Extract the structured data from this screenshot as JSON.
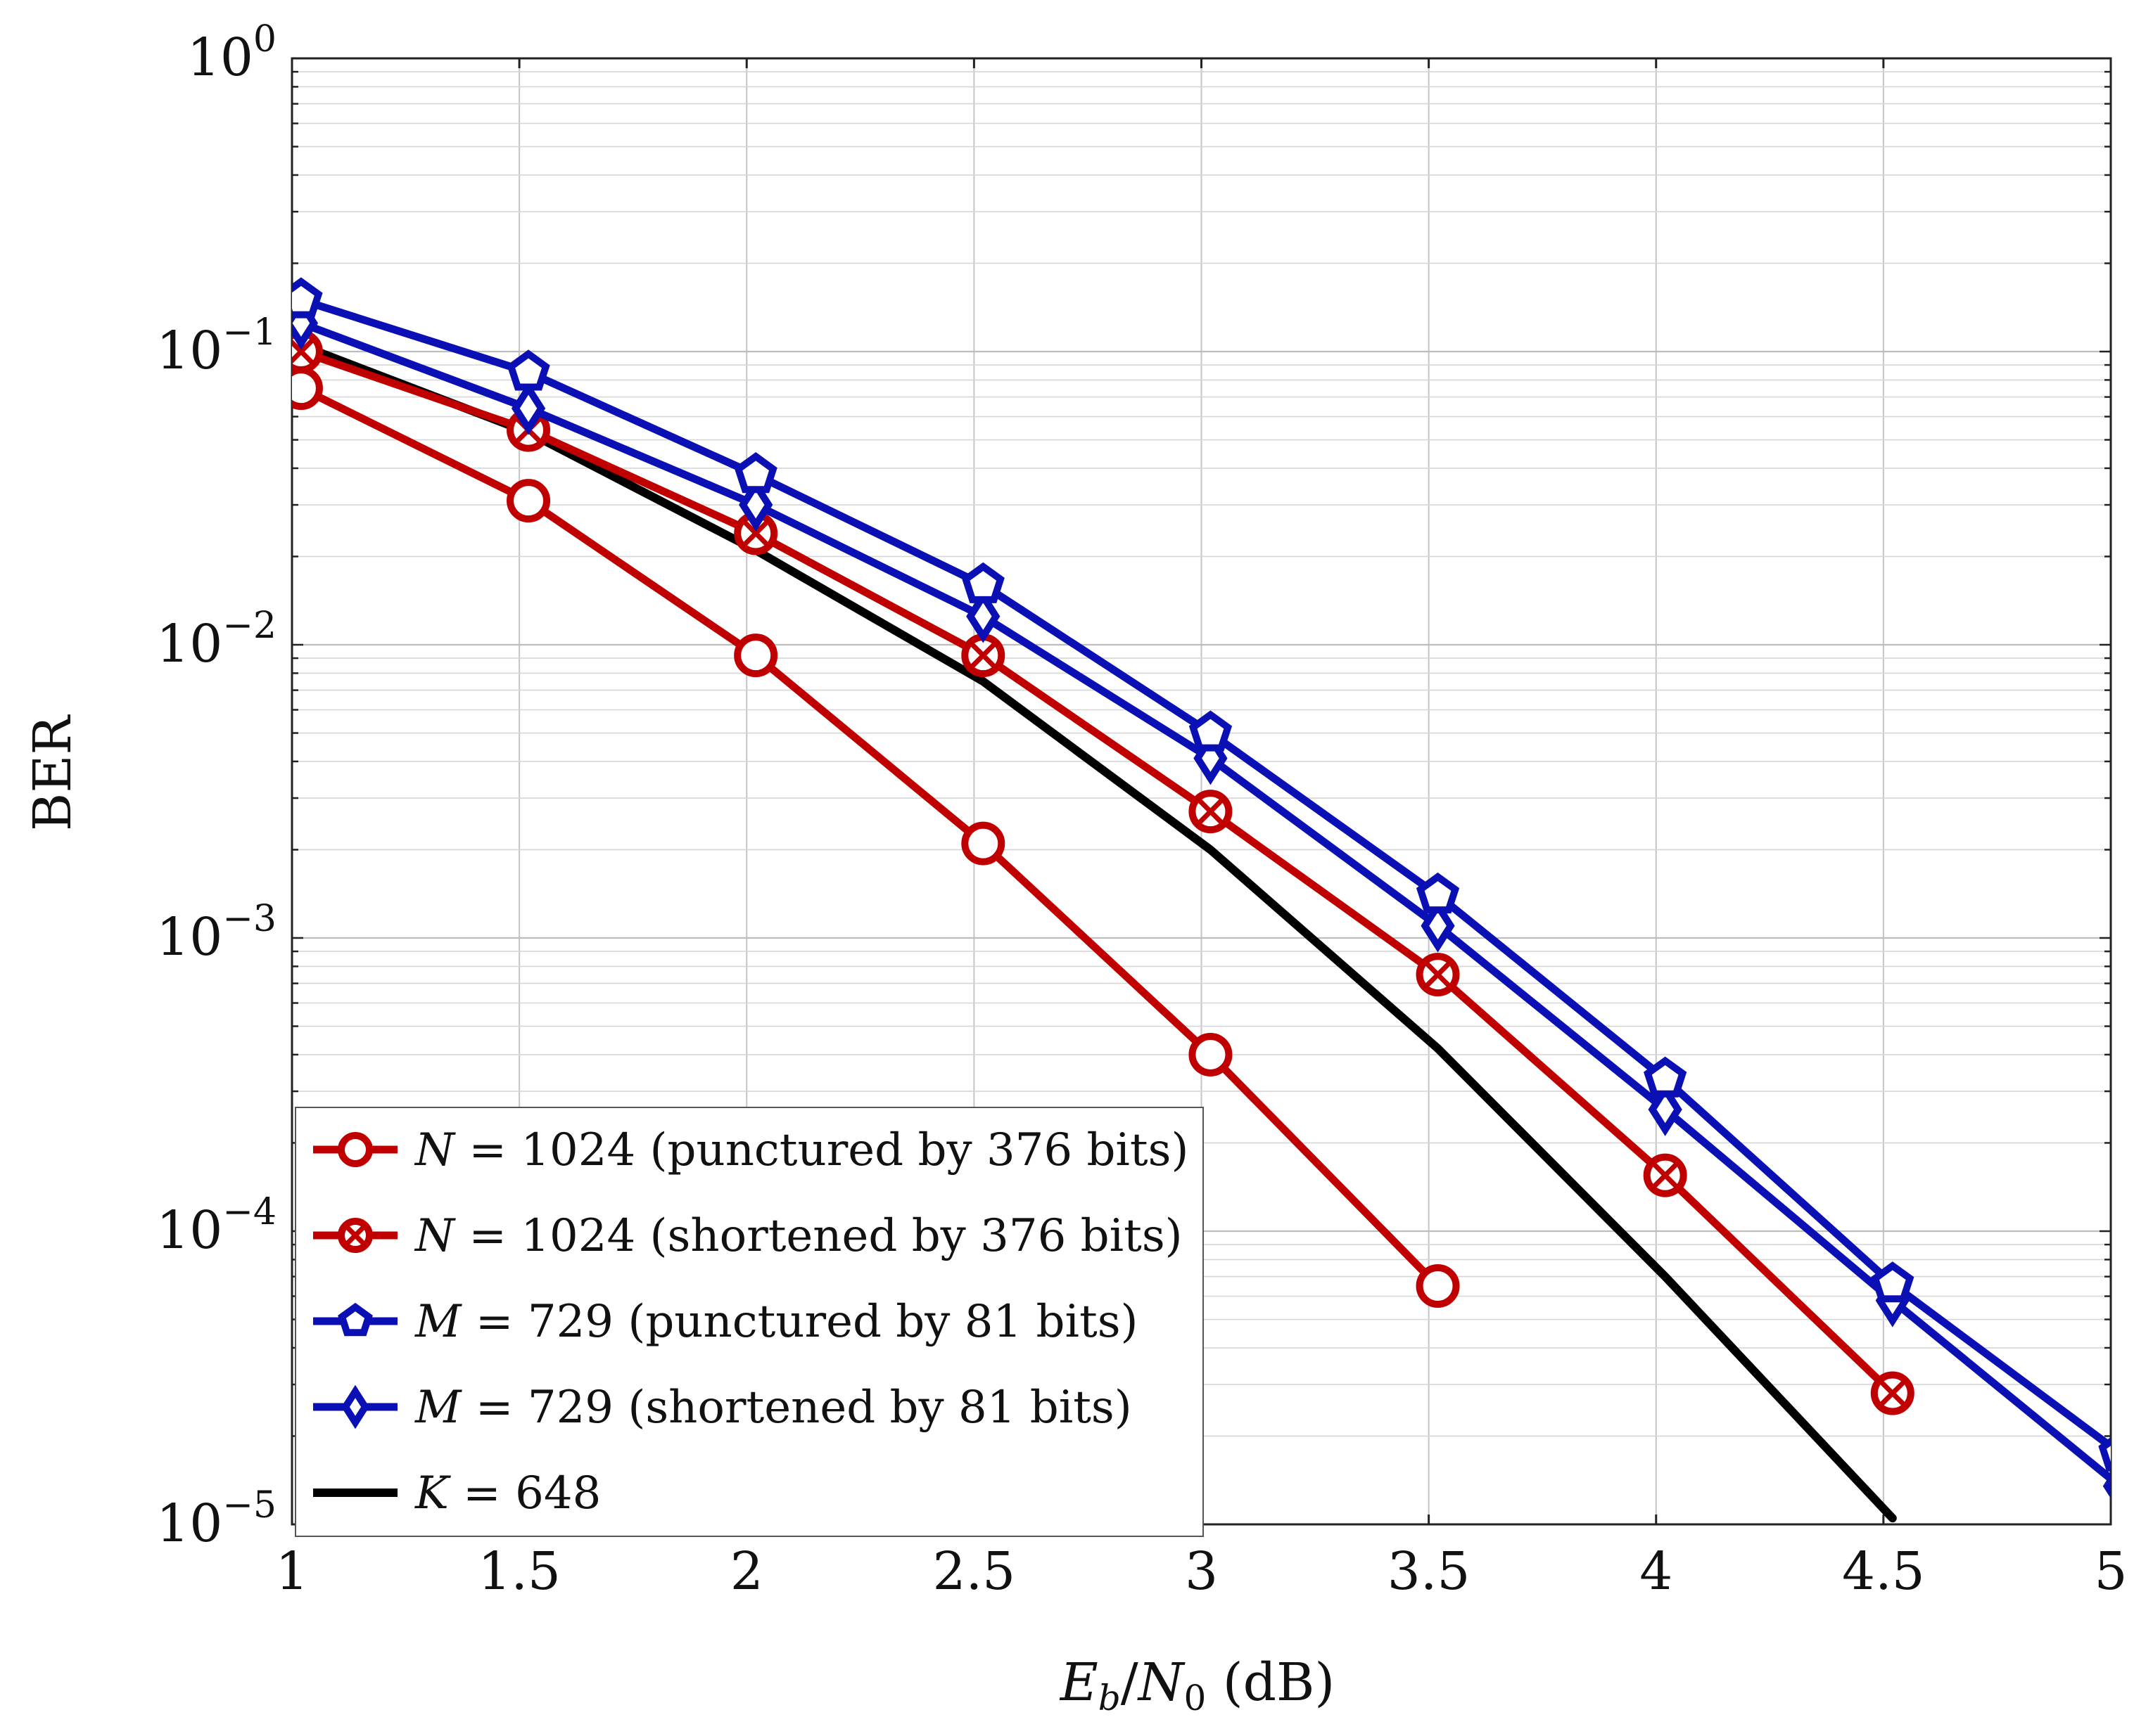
{
  "chart_data": {
    "type": "line",
    "title": "",
    "xlabel": "E_b/N_0 (dB)",
    "xlabel_parts": {
      "e": "E",
      "b": "b",
      "slash": "/",
      "n": "N",
      "zero": "0",
      "unit": " (dB)"
    },
    "ylabel": "BER",
    "x_scale": "linear",
    "y_scale": "log",
    "xlim": [
      1,
      5
    ],
    "ylim": [
      1e-05,
      1
    ],
    "x_ticks": [
      1,
      1.5,
      2,
      2.5,
      3,
      3.5,
      4,
      4.5,
      5
    ],
    "x_tick_labels": [
      "1",
      "1.5",
      "2",
      "2.5",
      "3",
      "3.5",
      "4",
      "4.5",
      "5"
    ],
    "y_ticks": [
      {
        "value": 1,
        "base": "10",
        "exp": "0"
      },
      {
        "value": 0.1,
        "base": "10",
        "exp": "−1"
      },
      {
        "value": 0.01,
        "base": "10",
        "exp": "−2"
      },
      {
        "value": 0.001,
        "base": "10",
        "exp": "−3"
      },
      {
        "value": 0.0001,
        "base": "10",
        "exp": "−4"
      },
      {
        "value": 1e-05,
        "base": "10",
        "exp": "−5"
      }
    ],
    "grid": true,
    "legend_position": "bottom-left",
    "series": [
      {
        "name": "N = 1024 (punctured by 376 bits)",
        "var": "N",
        "rest": " = 1024 (punctured by 376 bits)",
        "color": "#c00000",
        "marker": "circle",
        "x": [
          1,
          1.5,
          2,
          2.5,
          3,
          3.5
        ],
        "y": [
          0.075,
          0.031,
          0.0092,
          0.0021,
          0.0004,
          6.5e-05
        ]
      },
      {
        "name": "N = 1024 (shortened by 376 bits)",
        "var": "N",
        "rest": " = 1024 (shortened by 376 bits)",
        "color": "#c00000",
        "marker": "circle-x",
        "x": [
          1,
          1.5,
          2,
          2.5,
          3,
          3.5,
          4,
          4.5
        ],
        "y": [
          0.1,
          0.054,
          0.024,
          0.0092,
          0.0027,
          0.00075,
          0.000155,
          2.8e-05
        ]
      },
      {
        "name": "M = 729 (punctured by 81 bits)",
        "var": "M",
        "rest": " = 729 (punctured by 81 bits)",
        "color": "#0a10b4",
        "marker": "pentagon",
        "x": [
          1,
          1.5,
          2,
          2.5,
          3,
          3.5,
          4,
          4.5,
          5
        ],
        "y": [
          0.15,
          0.085,
          0.038,
          0.016,
          0.005,
          0.0014,
          0.00033,
          6.6e-05,
          1.75e-05
        ]
      },
      {
        "name": "M = 729 (shortened by 81 bits)",
        "var": "M",
        "rest": " = 729 (shortened by 81 bits)",
        "color": "#0a10b4",
        "marker": "diamond",
        "x": [
          1,
          1.5,
          2,
          2.5,
          3,
          3.5,
          4,
          4.5,
          5
        ],
        "y": [
          0.125,
          0.064,
          0.03,
          0.0125,
          0.0041,
          0.0011,
          0.00026,
          5.8e-05,
          1.35e-05
        ]
      },
      {
        "name": "K = 648",
        "var": "K",
        "rest": " = 648",
        "color": "#000000",
        "marker": "none",
        "x": [
          1,
          1.5,
          2,
          2.5,
          3,
          3.5,
          4,
          4.5
        ],
        "y": [
          0.105,
          0.053,
          0.021,
          0.0075,
          0.002,
          0.00042,
          7e-05,
          1.05e-05
        ]
      }
    ]
  }
}
